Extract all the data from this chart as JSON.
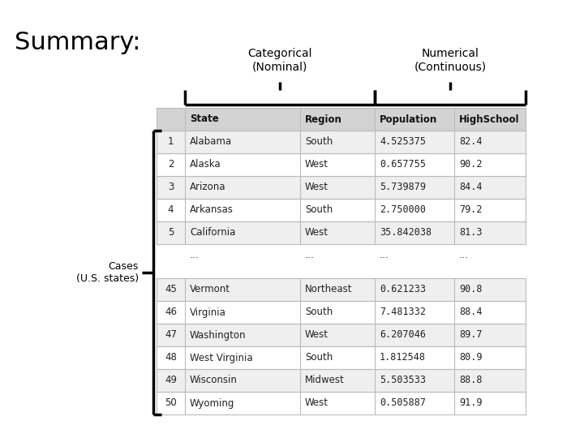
{
  "title": "Summary:",
  "cat_label": "Categorical\n(Nominal)",
  "num_label": "Numerical\n(Continuous)",
  "cases_label": "Cases\n(U.S. states)",
  "header_row": [
    "",
    "State",
    "Region",
    "Population",
    "HighSchool"
  ],
  "rows_top": [
    [
      "1",
      "Alabama",
      "South",
      "4.525375",
      "82.4"
    ],
    [
      "2",
      "Alaska",
      "West",
      "0.657755",
      "90.2"
    ],
    [
      "3",
      "Arizona",
      "West",
      "5.739879",
      "84.4"
    ],
    [
      "4",
      "Arkansas",
      "South",
      "2.750000",
      "79.2"
    ],
    [
      "5",
      "California",
      "West",
      "35.842038",
      "81.3"
    ]
  ],
  "rows_bottom": [
    [
      "45",
      "Vermont",
      "Northeast",
      "0.621233",
      "90.8"
    ],
    [
      "46",
      "Virginia",
      "South",
      "7.481332",
      "88.4"
    ],
    [
      "47",
      "Washington",
      "West",
      "6.207046",
      "89.7"
    ],
    [
      "48",
      "West Virginia",
      "South",
      "1.812548",
      "80.9"
    ],
    [
      "49",
      "Wisconsin",
      "Midwest",
      "5.503533",
      "88.8"
    ],
    [
      "50",
      "Wyoming",
      "West",
      "0.505887",
      "91.9"
    ]
  ],
  "header_bg": "#d3d3d3",
  "row_bg_even": "#efefef",
  "row_bg_odd": "#ffffff",
  "table_border": "#bbbbbb",
  "bg_color": "#ffffff"
}
